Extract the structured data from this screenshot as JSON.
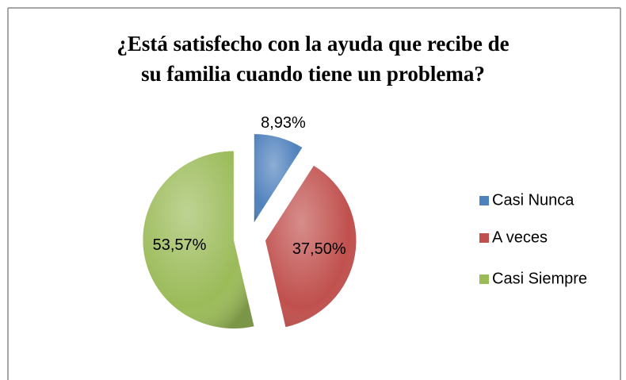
{
  "chart_data": {
    "type": "pie",
    "title": [
      "¿Está satisfecho con la ayuda que recibe de",
      "su familia cuando tiene un problema?"
    ],
    "categories": [
      "Casi Nunca",
      "A veces",
      "Casi Siempre"
    ],
    "values": [
      8.93,
      37.5,
      53.57
    ],
    "value_labels": [
      "8,93%",
      "37,50%",
      "53,57%"
    ],
    "colors": [
      "#4f81bd",
      "#c0504d",
      "#9bbb59"
    ],
    "legend": "right"
  }
}
